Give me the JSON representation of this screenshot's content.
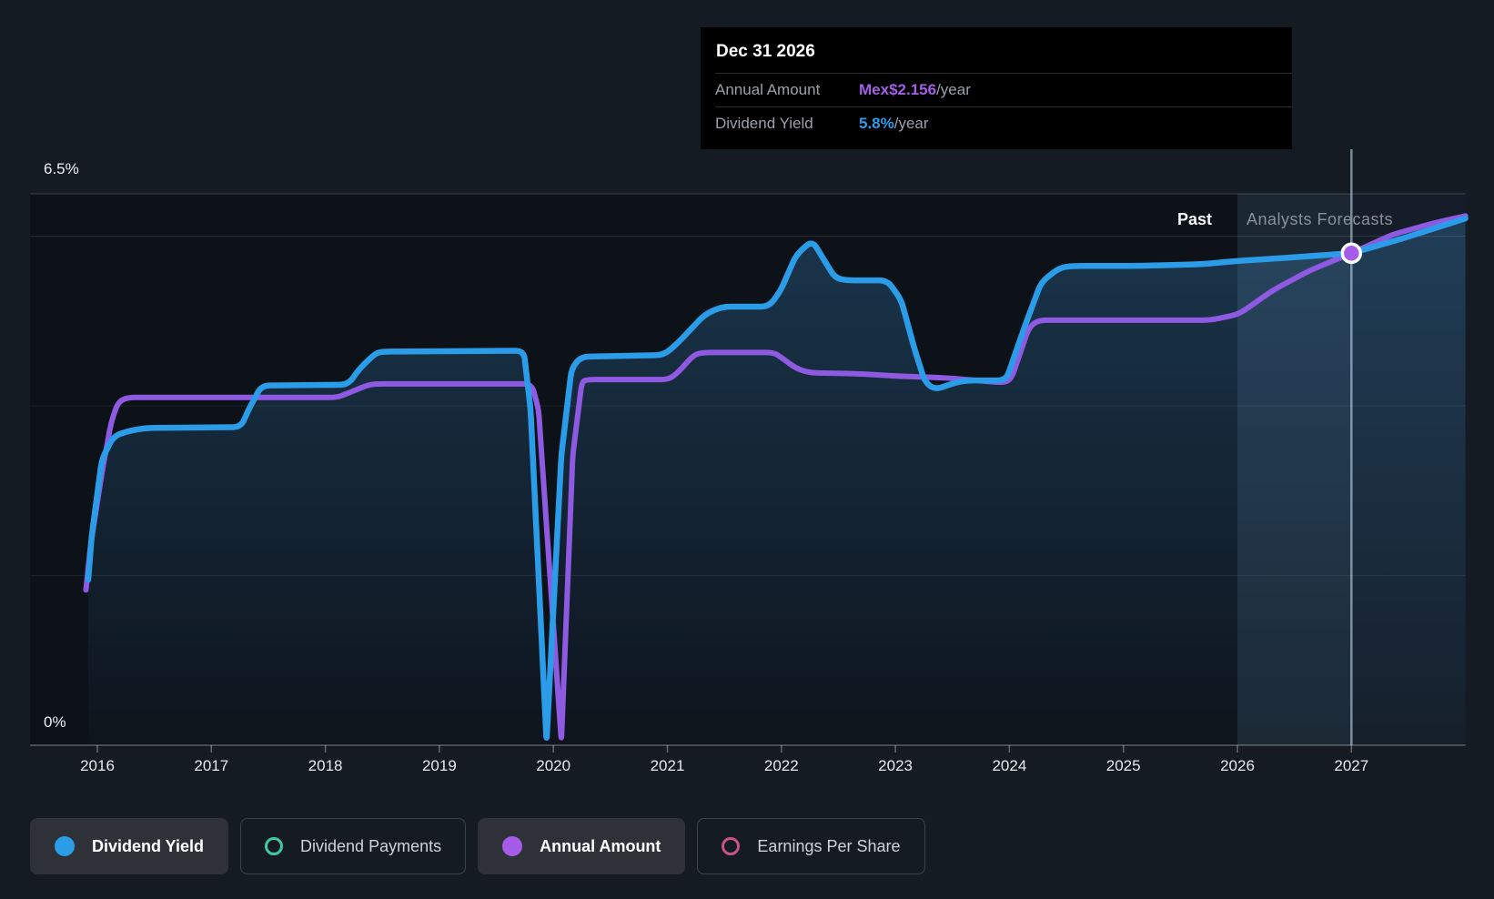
{
  "tooltip": {
    "date": "Dec 31 2026",
    "rows": [
      {
        "label": "Annual Amount",
        "value": "Mex$2.156",
        "suffix": "/year",
        "color": "#a45ee8"
      },
      {
        "label": "Dividend Yield",
        "value": "5.8%",
        "suffix": "/year",
        "color": "#2b9ce8"
      }
    ]
  },
  "y_axis": {
    "top_label": "6.5%",
    "bottom_label": "0%"
  },
  "x_axis": {
    "years": [
      "2016",
      "2017",
      "2018",
      "2019",
      "2020",
      "2021",
      "2022",
      "2023",
      "2024",
      "2025",
      "2026",
      "2027"
    ]
  },
  "regions": {
    "past_label": "Past",
    "forecast_label": "Analysts Forecasts"
  },
  "legend": {
    "items": [
      {
        "label": "Dividend Yield",
        "marker": "filled",
        "color": "#2b9ce8",
        "active": true
      },
      {
        "label": "Dividend Payments",
        "marker": "ring",
        "color": "#3fc9a9",
        "active": false
      },
      {
        "label": "Annual Amount",
        "marker": "filled",
        "color": "#a55ce8",
        "active": true
      },
      {
        "label": "Earnings Per Share",
        "marker": "ring",
        "color": "#c9548c",
        "active": false
      }
    ]
  },
  "colors": {
    "background": "#151b22",
    "plot_background": "#0d1219",
    "dividend_yield_line": "#2b9ce8",
    "annual_amount_line": "#8f5ae2",
    "marker_fill": "#a55ce8",
    "area_fill": "#3888c6"
  },
  "chart_data": {
    "type": "line",
    "title": "",
    "x_range": [
      2015.4,
      2028.0
    ],
    "x_ticks": [
      2016,
      2017,
      2018,
      2019,
      2020,
      2021,
      2022,
      2023,
      2024,
      2025,
      2026,
      2027
    ],
    "y_axis": {
      "min": 0,
      "max": 6.5,
      "unit": "%",
      "labeled_ticks": [
        "6.5%",
        "0%"
      ],
      "gridlines_pct": [
        0,
        2,
        4,
        6,
        6.5
      ],
      "grid": true
    },
    "forecast_start": 2026.0,
    "legend_position": "bottom",
    "highlight": {
      "date": "Dec 31 2026",
      "x": 2027.0,
      "dividend_yield_pct": 5.8,
      "annual_amount": "Mex$2.156/year"
    },
    "series": [
      {
        "name": "Dividend Yield",
        "unit": "%",
        "style": "line+area",
        "color": "#2b9ce8",
        "points": [
          [
            2015.92,
            1.95
          ],
          [
            2015.95,
            2.46
          ],
          [
            2016.04,
            3.37
          ],
          [
            2016.14,
            3.64
          ],
          [
            2016.26,
            3.7
          ],
          [
            2016.42,
            3.74
          ],
          [
            2017.26,
            3.75
          ],
          [
            2017.32,
            3.94
          ],
          [
            2017.44,
            4.24
          ],
          [
            2018.2,
            4.25
          ],
          [
            2018.3,
            4.44
          ],
          [
            2018.44,
            4.62
          ],
          [
            2018.5,
            4.64
          ],
          [
            2019.74,
            4.65
          ],
          [
            2019.8,
            3.96
          ],
          [
            2019.94,
            0.04
          ],
          [
            2020.07,
            3.42
          ],
          [
            2020.16,
            4.44
          ],
          [
            2020.24,
            4.58
          ],
          [
            2020.97,
            4.6
          ],
          [
            2021.09,
            4.74
          ],
          [
            2021.33,
            5.08
          ],
          [
            2021.48,
            5.17
          ],
          [
            2021.89,
            5.17
          ],
          [
            2021.99,
            5.35
          ],
          [
            2022.13,
            5.78
          ],
          [
            2022.27,
            5.95
          ],
          [
            2022.37,
            5.73
          ],
          [
            2022.47,
            5.51
          ],
          [
            2022.57,
            5.48
          ],
          [
            2022.93,
            5.48
          ],
          [
            2023.05,
            5.25
          ],
          [
            2023.17,
            4.66
          ],
          [
            2023.26,
            4.28
          ],
          [
            2023.35,
            4.19
          ],
          [
            2023.49,
            4.26
          ],
          [
            2023.61,
            4.3
          ],
          [
            2023.97,
            4.3
          ],
          [
            2024.13,
            4.92
          ],
          [
            2024.28,
            5.46
          ],
          [
            2024.44,
            5.63
          ],
          [
            2024.56,
            5.65
          ],
          [
            2025.12,
            5.65
          ],
          [
            2025.68,
            5.67
          ],
          [
            2026.01,
            5.71
          ],
          [
            2026.48,
            5.75
          ],
          [
            2027.0,
            5.8
          ],
          [
            2027.44,
            5.97
          ],
          [
            2028.0,
            6.21
          ]
        ]
      },
      {
        "name": "Annual Amount",
        "unit": "axis-% (actual unit Mex$/year; 5.8 axis-% = Mex$2.156)",
        "style": "line",
        "color": "#8f5ae2",
        "points": [
          [
            2015.9,
            1.83
          ],
          [
            2015.94,
            2.35
          ],
          [
            2016.04,
            3.21
          ],
          [
            2016.12,
            3.8
          ],
          [
            2016.18,
            4.04
          ],
          [
            2016.26,
            4.1
          ],
          [
            2018.1,
            4.1
          ],
          [
            2018.18,
            4.14
          ],
          [
            2018.38,
            4.25
          ],
          [
            2018.46,
            4.26
          ],
          [
            2019.81,
            4.26
          ],
          [
            2019.87,
            3.96
          ],
          [
            2020.07,
            0.04
          ],
          [
            2020.17,
            3.42
          ],
          [
            2020.25,
            4.28
          ],
          [
            2020.29,
            4.31
          ],
          [
            2021.01,
            4.31
          ],
          [
            2021.09,
            4.39
          ],
          [
            2021.23,
            4.6
          ],
          [
            2021.31,
            4.63
          ],
          [
            2021.93,
            4.63
          ],
          [
            2021.99,
            4.58
          ],
          [
            2022.13,
            4.44
          ],
          [
            2022.25,
            4.39
          ],
          [
            2022.65,
            4.38
          ],
          [
            2023.05,
            4.35
          ],
          [
            2023.45,
            4.33
          ],
          [
            2023.89,
            4.28
          ],
          [
            2023.97,
            4.28
          ],
          [
            2024.02,
            4.33
          ],
          [
            2024.17,
            4.92
          ],
          [
            2024.25,
            5.01
          ],
          [
            2025.76,
            5.01
          ],
          [
            2026.01,
            5.08
          ],
          [
            2026.32,
            5.37
          ],
          [
            2026.64,
            5.6
          ],
          [
            2027.0,
            5.8
          ],
          [
            2027.36,
            6.02
          ],
          [
            2027.71,
            6.15
          ],
          [
            2028.0,
            6.24
          ]
        ]
      }
    ]
  }
}
